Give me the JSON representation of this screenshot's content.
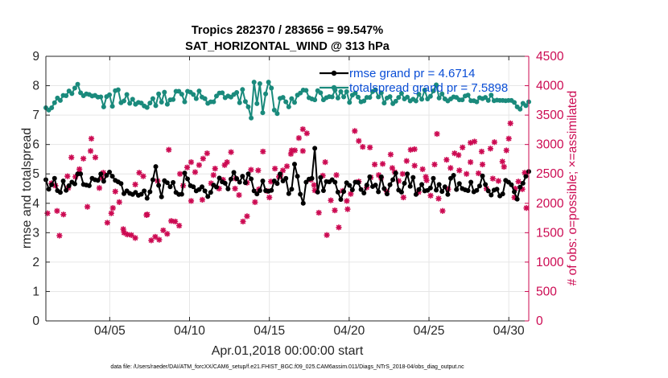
{
  "chart_data": {
    "type": "line",
    "title": "Tropics 282370 / 283656 = 99.547%",
    "subtitle": "SAT_HORIZONTAL_WIND @ 313 hPa",
    "xlabel": "Apr.01,2018 00:00:00 start",
    "ylabel_left": "rmse and totalspread",
    "ylabel_right": "# of obs: o=possible; ×=assimilated",
    "xlim": [
      1.0,
      31.25
    ],
    "ylim_left": [
      0,
      9
    ],
    "ylim_right": [
      0,
      4500
    ],
    "x_ticks": [
      5,
      10,
      15,
      20,
      25,
      30
    ],
    "x_tick_labels": [
      "04/05",
      "04/10",
      "04/15",
      "04/20",
      "04/25",
      "04/30"
    ],
    "y_ticks_left": [
      "0",
      "1",
      "2",
      "3",
      "4",
      "5",
      "6",
      "7",
      "8",
      "9"
    ],
    "y_ticks_right": [
      "0",
      "500",
      "1000",
      "1500",
      "2000",
      "2500",
      "3000",
      "3500",
      "4000",
      "4500"
    ],
    "legend": [
      {
        "label": "rmse grand pr = 4.6714",
        "color": "#000000"
      },
      {
        "label": "totalspread grand pr = 7.5898",
        "color": "#1a8a7c"
      }
    ],
    "colors": {
      "rmse": "#000000",
      "spread": "#1a8a7c",
      "obs": "#cc0a52",
      "legend_text": "#0a4ed6"
    },
    "series": [
      {
        "name": "rmse",
        "axis": "left",
        "y": [
          4.8,
          4.48,
          4.63,
          4.85,
          4.43,
          4.37,
          4.76,
          4.44,
          4.6,
          4.72,
          4.66,
          5.0,
          5.0,
          4.64,
          4.62,
          4.6,
          4.85,
          4.8,
          4.78,
          5.0,
          4.75,
          4.95,
          5.06,
          4.92,
          4.78,
          4.73,
          4.67,
          4.33,
          4.42,
          4.34,
          4.3,
          4.37,
          4.27,
          4.31,
          4.42,
          4.17,
          4.39,
          4.8,
          5.25,
          4.61,
          4.22,
          4.77,
          4.7,
          4.56,
          4.71,
          4.37,
          4.3,
          4.31,
          5.03,
          4.83,
          4.6,
          4.56,
          4.42,
          4.47,
          4.56,
          4.42,
          4.23,
          4.37,
          4.62,
          4.55,
          4.86,
          4.73,
          4.68,
          4.49,
          4.82,
          5.05,
          4.84,
          4.72,
          4.92,
          4.7,
          5.0,
          4.83,
          4.42,
          4.32,
          4.43,
          4.76,
          4.43,
          4.41,
          4.44,
          4.76,
          4.67,
          5.0,
          4.76,
          4.85,
          4.33,
          4.48,
          5.33,
          4.92,
          4.31,
          4.0,
          4.72,
          4.82,
          4.85,
          5.87,
          4.38,
          4.88,
          4.43,
          4.74,
          4.73,
          4.8,
          4.72,
          4.38,
          4.13,
          4.4,
          4.7,
          4.61,
          4.46,
          4.72,
          4.71,
          4.47,
          4.35,
          4.62,
          4.9,
          4.57,
          4.62,
          4.39,
          4.9,
          4.5,
          4.32,
          4.63,
          4.8,
          5.03,
          4.45,
          4.38,
          4.68,
          5.0,
          4.58,
          4.88,
          4.3,
          4.47,
          4.64,
          4.42,
          4.44,
          4.52,
          4.85,
          4.45,
          4.64,
          4.4,
          4.56,
          4.3,
          4.85,
          4.95,
          4.47,
          4.67,
          4.5,
          4.46,
          4.43,
          4.72,
          4.39,
          4.44,
          4.59,
          4.93,
          4.64,
          4.42,
          4.28,
          4.45,
          4.48,
          4.25,
          4.32,
          4.78,
          4.72,
          4.63,
          4.39,
          4.14,
          4.55,
          4.68,
          4.92,
          5.08
        ]
      },
      {
        "name": "totalspread",
        "axis": "left",
        "y": [
          7.25,
          7.17,
          7.25,
          7.42,
          7.58,
          7.5,
          7.67,
          7.66,
          7.82,
          7.73,
          7.92,
          8.05,
          7.76,
          7.66,
          7.72,
          7.7,
          7.65,
          7.67,
          7.61,
          7.62,
          7.28,
          7.63,
          7.69,
          7.3,
          7.83,
          7.86,
          7.42,
          7.48,
          7.7,
          7.4,
          7.54,
          7.37,
          7.43,
          7.41,
          7.31,
          7.26,
          7.41,
          7.56,
          7.32,
          7.72,
          7.44,
          7.78,
          7.37,
          7.52,
          7.53,
          7.81,
          7.81,
          7.71,
          7.45,
          7.81,
          7.78,
          7.7,
          7.56,
          7.82,
          7.61,
          7.56,
          7.4,
          7.45,
          7.45,
          7.65,
          7.75,
          7.76,
          7.59,
          7.65,
          7.61,
          7.7,
          7.77,
          7.42,
          7.87,
          7.46,
          7.28,
          6.9,
          8.12,
          7.39,
          8.07,
          7.08,
          7.72,
          8.12,
          7.92,
          7.17,
          7.05,
          7.57,
          7.6,
          7.45,
          7.28,
          7.56,
          7.43,
          7.68,
          7.75,
          7.85,
          7.84,
          7.59,
          7.55,
          7.52,
          7.83,
          7.76,
          7.52,
          7.59,
          7.63,
          7.62,
          7.85,
          7.58,
          7.8,
          7.62,
          7.8,
          7.43,
          7.68,
          7.75,
          7.61,
          7.45,
          7.48,
          7.6,
          7.6,
          7.8,
          7.86,
          7.62,
          7.76,
          7.41,
          7.58,
          7.63,
          7.39,
          7.47,
          7.6,
          7.74,
          7.55,
          7.61,
          7.48,
          7.54,
          7.48,
          7.71,
          7.54,
          7.85,
          7.55,
          7.64,
          7.82,
          8.03,
          7.58,
          7.72,
          7.55,
          7.48,
          7.55,
          7.62,
          7.6,
          7.52,
          7.52,
          7.65,
          7.68,
          7.49,
          7.49,
          7.45,
          7.59,
          7.56,
          7.6,
          7.5,
          7.68,
          7.49,
          7.51,
          7.5,
          7.5,
          7.49,
          7.5,
          7.5,
          7.43,
          7.28,
          7.2,
          7.4,
          7.32,
          7.45
        ]
      },
      {
        "name": "obs possible / assimilated",
        "axis": "right",
        "points": [
          [
            1.1,
            1830
          ],
          [
            1.35,
            2340
          ],
          [
            1.6,
            2300
          ],
          [
            1.85,
            1450
          ],
          [
            2.1,
            1810
          ],
          [
            2.35,
            2460
          ],
          [
            2.6,
            2780
          ],
          [
            2.85,
            2450
          ],
          [
            3.1,
            2580
          ],
          [
            3.35,
            2760
          ],
          [
            3.6,
            1940
          ],
          [
            3.85,
            3100
          ],
          [
            4.1,
            2780
          ],
          [
            4.35,
            2260
          ],
          [
            4.6,
            2520
          ],
          [
            4.85,
            1670
          ],
          [
            5.1,
            1830
          ],
          [
            5.35,
            2200
          ],
          [
            5.6,
            2020
          ],
          [
            5.85,
            1560
          ],
          [
            6.1,
            1470
          ],
          [
            6.35,
            1460
          ],
          [
            6.6,
            2320
          ],
          [
            6.85,
            2520
          ],
          [
            7.1,
            2460
          ],
          [
            7.35,
            1810
          ],
          [
            7.6,
            1370
          ],
          [
            7.85,
            1430
          ],
          [
            8.1,
            1380
          ],
          [
            8.35,
            1540
          ],
          [
            8.6,
            1480
          ],
          [
            8.85,
            1700
          ],
          [
            9.1,
            1690
          ],
          [
            9.35,
            1620
          ],
          [
            9.6,
            2300
          ],
          [
            9.85,
            2610
          ],
          [
            10.1,
            2040
          ],
          [
            10.35,
            2530
          ],
          [
            10.6,
            2650
          ],
          [
            10.85,
            2760
          ],
          [
            11.1,
            2850
          ],
          [
            11.35,
            2340
          ],
          [
            11.6,
            2590
          ],
          [
            11.85,
            2250
          ],
          [
            12.1,
            2400
          ],
          [
            12.35,
            2700
          ],
          [
            12.6,
            2870
          ],
          [
            12.85,
            2250
          ],
          [
            13.1,
            2140
          ],
          [
            13.35,
            1690
          ],
          [
            13.6,
            2350
          ],
          [
            13.85,
            2570
          ],
          [
            14.1,
            2020
          ],
          [
            14.35,
            2240
          ],
          [
            14.6,
            2880
          ],
          [
            14.85,
            2210
          ],
          [
            15.1,
            2370
          ],
          [
            15.35,
            2590
          ],
          [
            15.6,
            2450
          ],
          [
            15.85,
            2560
          ],
          [
            16.1,
            2630
          ],
          [
            16.35,
            2840
          ],
          [
            16.6,
            2900
          ],
          [
            16.85,
            3110
          ],
          [
            17.1,
            2890
          ],
          [
            17.35,
            3190
          ],
          [
            17.6,
            2400
          ],
          [
            17.85,
            2220
          ],
          [
            18.1,
            1840
          ],
          [
            18.35,
            2470
          ],
          [
            18.6,
            1460
          ],
          [
            18.85,
            2050
          ],
          [
            19.1,
            1880
          ],
          [
            19.35,
            1590
          ],
          [
            19.6,
            2210
          ],
          [
            19.85,
            2040
          ],
          [
            20.1,
            2160
          ],
          [
            20.35,
            3230
          ],
          [
            20.6,
            3060
          ],
          [
            20.85,
            2960
          ],
          [
            21.1,
            2270
          ],
          [
            21.35,
            2440
          ],
          [
            21.6,
            2660
          ],
          [
            21.85,
            2480
          ],
          [
            22.1,
            2670
          ],
          [
            22.35,
            2200
          ],
          [
            22.6,
            2830
          ],
          [
            22.85,
            2530
          ],
          [
            23.1,
            2380
          ],
          [
            23.35,
            2500
          ],
          [
            23.6,
            2720
          ],
          [
            23.85,
            2910
          ],
          [
            24.1,
            2920
          ],
          [
            24.35,
            2190
          ],
          [
            24.6,
            2580
          ],
          [
            24.85,
            2390
          ],
          [
            25.1,
            2130
          ],
          [
            25.35,
            2660
          ],
          [
            25.6,
            2080
          ],
          [
            25.85,
            1870
          ],
          [
            26.1,
            2740
          ],
          [
            26.35,
            2600
          ],
          [
            26.6,
            2850
          ],
          [
            26.85,
            2820
          ],
          [
            27.1,
            2950
          ],
          [
            27.35,
            2500
          ],
          [
            27.6,
            2700
          ],
          [
            27.85,
            3050
          ],
          [
            28.1,
            2510
          ],
          [
            28.35,
            2660
          ],
          [
            28.6,
            2250
          ],
          [
            28.85,
            2930
          ],
          [
            29.1,
            3040
          ],
          [
            29.35,
            2380
          ],
          [
            29.6,
            2710
          ],
          [
            29.85,
            2900
          ],
          [
            30.1,
            3360
          ],
          [
            30.35,
            2100
          ],
          [
            30.6,
            2370
          ],
          [
            30.85,
            2240
          ],
          [
            31.1,
            1920
          ],
          [
            1.7,
            1870
          ],
          [
            2.4,
            2260
          ],
          [
            3.1,
            2520
          ],
          [
            3.8,
            2890
          ],
          [
            4.5,
            2430
          ],
          [
            5.2,
            1920
          ],
          [
            5.9,
            1500
          ],
          [
            6.6,
            1410
          ],
          [
            7.3,
            1800
          ],
          [
            8.0,
            2380
          ],
          [
            8.7,
            2910
          ],
          [
            9.4,
            2500
          ],
          [
            10.1,
            2700
          ],
          [
            10.8,
            2060
          ],
          [
            11.5,
            2480
          ],
          [
            12.2,
            2650
          ],
          [
            12.9,
            2420
          ],
          [
            13.6,
            1780
          ],
          [
            14.3,
            2560
          ],
          [
            15.0,
            2100
          ],
          [
            15.7,
            2480
          ],
          [
            16.4,
            2900
          ],
          [
            17.1,
            3260
          ],
          [
            17.8,
            2310
          ],
          [
            18.5,
            2700
          ],
          [
            19.2,
            2480
          ],
          [
            19.9,
            1900
          ],
          [
            20.6,
            2370
          ],
          [
            21.3,
            2950
          ],
          [
            22.0,
            2430
          ],
          [
            22.7,
            2600
          ],
          [
            23.4,
            2100
          ],
          [
            24.1,
            2640
          ],
          [
            24.8,
            2450
          ],
          [
            25.5,
            3180
          ],
          [
            26.2,
            2240
          ],
          [
            26.9,
            2560
          ],
          [
            27.6,
            3030
          ],
          [
            28.3,
            2880
          ],
          [
            29.0,
            2420
          ],
          [
            29.7,
            2620
          ],
          [
            30.4,
            2250
          ],
          [
            31.0,
            2520
          ],
          [
            30.0,
            3100
          ]
        ]
      }
    ]
  },
  "footnote": "data file: /Users/raeder/DAI/ATM_forcXX/CAM6_setup/f.e21.FHIST_BGC.f09_025.CAM6assim.011/Diags_NTrS_2018-04/obs_diag_output.nc"
}
